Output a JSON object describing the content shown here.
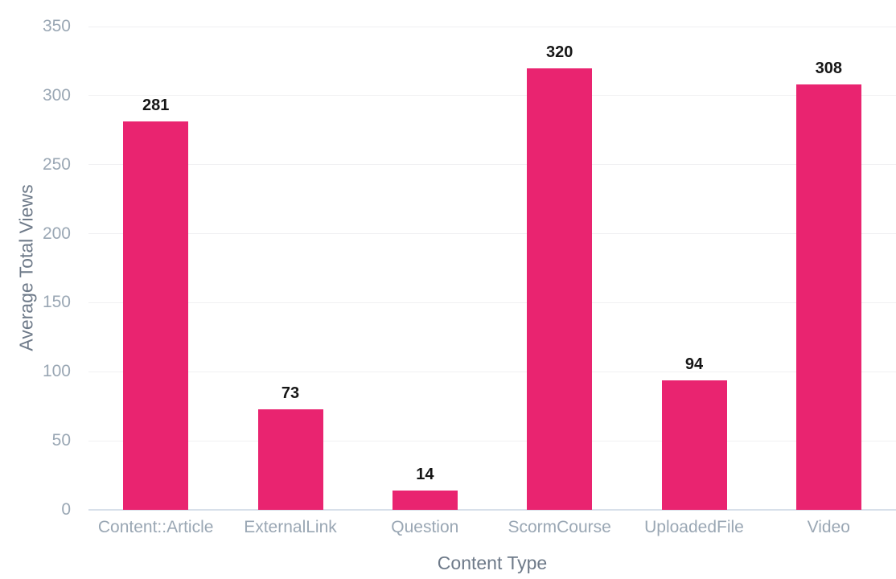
{
  "chart_data": {
    "type": "bar",
    "title": "",
    "xlabel": "Content Type",
    "ylabel": "Average Total Views",
    "categories": [
      "Content::Article",
      "ExternalLink",
      "Question",
      "ScormCourse",
      "UploadedFile",
      "Video"
    ],
    "values": [
      281,
      73,
      14,
      320,
      94,
      308
    ],
    "ylim": [
      0,
      350
    ],
    "yticks": [
      0,
      50,
      100,
      150,
      200,
      250,
      300,
      350
    ],
    "grid": true,
    "legend": "none",
    "colors": {
      "bar": "#e92470",
      "value_label": "#161616",
      "tick_label": "#9aa7b4",
      "axis_title": "#6e7a89",
      "gridline": "#f0f0f2",
      "baseline": "#d8e0ea",
      "background": "#ffffff"
    }
  }
}
